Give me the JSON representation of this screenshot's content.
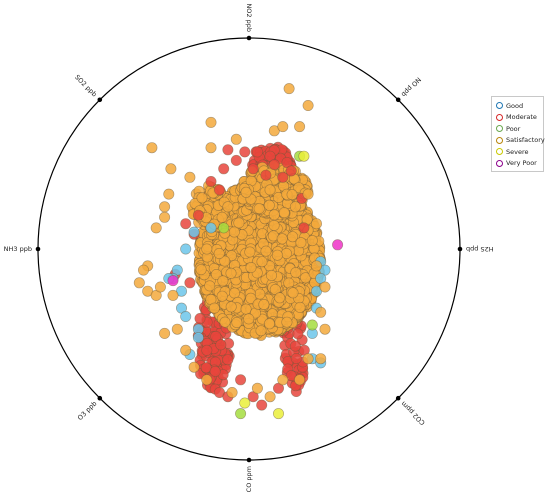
{
  "chart_data": {
    "type": "scatter",
    "layout": "radviz",
    "title": "",
    "anchors": [
      "NO2 ppb",
      "NO ppb",
      "H2S ppb",
      "CO2 ppm",
      "CO ppm",
      "O3 ppb",
      "NH3 ppb",
      "SO2 ppb"
    ],
    "legend": {
      "placement": "right",
      "entries": [
        {
          "name": "Good",
          "color": "#1f77b4"
        },
        {
          "name": "Moderate",
          "color": "#d62728"
        },
        {
          "name": "Poor",
          "color": "#6aa84f"
        },
        {
          "name": "Satisfactory",
          "color": "#b8860b"
        },
        {
          "name": "Severe",
          "color": "#c9c900"
        },
        {
          "name": "Very Poor",
          "color": "#8b008b"
        }
      ]
    },
    "colors": {
      "Good": "#6cc5ea",
      "Moderate": "#e8453c",
      "Poor": "#a5dd3f",
      "Satisfactory": "#f3a93c",
      "Severe": "#eaee3a",
      "Very Poor": "#ee33c8"
    },
    "series": [
      {
        "name": "Moderate",
        "points": [
          [
            -0.1,
            0.47
          ],
          [
            -0.02,
            0.46
          ],
          [
            0.04,
            0.46
          ],
          [
            0.1,
            0.44
          ],
          [
            0.15,
            0.43
          ],
          [
            -0.06,
            0.42
          ],
          [
            0.12,
            0.4
          ],
          [
            0.18,
            0.41
          ],
          [
            -0.12,
            0.38
          ],
          [
            0.02,
            0.38
          ],
          [
            0.2,
            0.37
          ],
          [
            -0.18,
            0.32
          ],
          [
            0.16,
            0.34
          ],
          [
            -0.24,
            0.16
          ],
          [
            -0.3,
            0.12
          ],
          [
            -0.26,
            0.07
          ],
          [
            -0.35,
            -0.12
          ],
          [
            -0.28,
            -0.16
          ],
          [
            -0.14,
            -0.68
          ],
          [
            -0.1,
            -0.7
          ],
          [
            0.02,
            -0.7
          ],
          [
            0.06,
            -0.74
          ],
          [
            0.2,
            -0.6
          ],
          [
            -0.16,
            -0.58
          ],
          [
            -0.04,
            -0.62
          ],
          [
            0.22,
            -0.46
          ],
          [
            0.14,
            -0.66
          ],
          [
            -0.2,
            -0.48
          ],
          [
            0.08,
            0.35
          ],
          [
            -0.14,
            0.28
          ],
          [
            0.25,
            0.24
          ],
          [
            0.26,
            0.1
          ]
        ]
      },
      {
        "name": "Good",
        "points": [
          [
            -0.3,
            0.0
          ],
          [
            -0.34,
            -0.1
          ],
          [
            -0.36,
            -0.14
          ],
          [
            -0.38,
            -0.14
          ],
          [
            -0.32,
            -0.2
          ],
          [
            -0.32,
            -0.28
          ],
          [
            -0.3,
            -0.32
          ],
          [
            -0.24,
            -0.38
          ],
          [
            -0.24,
            -0.42
          ],
          [
            -0.18,
            0.1
          ],
          [
            -0.26,
            0.08
          ],
          [
            0.34,
            -0.06
          ],
          [
            0.36,
            -0.1
          ],
          [
            0.34,
            -0.14
          ],
          [
            0.32,
            -0.2
          ],
          [
            0.32,
            -0.28
          ],
          [
            0.3,
            -0.52
          ],
          [
            0.34,
            -0.54
          ],
          [
            0.3,
            -0.4
          ],
          [
            -0.28,
            -0.5
          ]
        ]
      },
      {
        "name": "Poor",
        "points": [
          [
            0.24,
            0.44
          ],
          [
            -0.04,
            -0.78
          ],
          [
            -0.12,
            0.1
          ],
          [
            0.3,
            -0.36
          ]
        ]
      },
      {
        "name": "Severe",
        "points": [
          [
            0.26,
            0.44
          ],
          [
            0.14,
            -0.78
          ],
          [
            -0.02,
            -0.73
          ]
        ]
      },
      {
        "name": "Very Poor",
        "points": [
          [
            0.42,
            0.02
          ],
          [
            -0.36,
            -0.15
          ]
        ]
      },
      {
        "name": "Satisfactory",
        "points": [
          [
            0.19,
            0.76
          ],
          [
            0.28,
            0.68
          ],
          [
            -0.06,
            0.52
          ],
          [
            -0.46,
            0.48
          ],
          [
            -0.37,
            0.38
          ],
          [
            -0.18,
            0.48
          ],
          [
            0.12,
            0.56
          ],
          [
            0.16,
            0.58
          ],
          [
            0.24,
            0.58
          ],
          [
            -0.18,
            0.6
          ],
          [
            -0.28,
            0.34
          ],
          [
            -0.38,
            0.26
          ],
          [
            -0.4,
            0.2
          ],
          [
            -0.4,
            0.15
          ],
          [
            -0.44,
            0.1
          ],
          [
            -0.48,
            -0.08
          ],
          [
            -0.5,
            -0.1
          ],
          [
            -0.52,
            -0.16
          ],
          [
            -0.48,
            -0.2
          ],
          [
            -0.44,
            -0.22
          ],
          [
            -0.42,
            -0.18
          ],
          [
            -0.36,
            -0.22
          ],
          [
            -0.4,
            -0.4
          ],
          [
            -0.34,
            -0.38
          ],
          [
            -0.3,
            -0.48
          ],
          [
            -0.26,
            -0.56
          ],
          [
            -0.2,
            -0.62
          ],
          [
            -0.08,
            -0.68
          ],
          [
            0.04,
            -0.66
          ],
          [
            0.1,
            -0.7
          ],
          [
            0.16,
            -0.62
          ],
          [
            0.24,
            -0.62
          ],
          [
            0.28,
            -0.52
          ],
          [
            0.34,
            -0.52
          ],
          [
            0.36,
            -0.38
          ],
          [
            0.34,
            -0.3
          ],
          [
            0.36,
            -0.18
          ],
          [
            0.32,
            -0.08
          ],
          [
            0.3,
            0.04
          ],
          [
            0.32,
            0.12
          ],
          [
            0.28,
            0.26
          ],
          [
            0.22,
            0.2
          ],
          [
            0.1,
            0.28
          ],
          [
            -0.2,
            0.0
          ],
          [
            -0.1,
            0.2
          ]
        ]
      }
    ],
    "cloud": [
      {
        "series": "Moderate",
        "cx": 0.1,
        "cy": 0.4,
        "rx": 0.1,
        "ry": 0.09,
        "n": 120
      },
      {
        "series": "Moderate",
        "cx": -0.17,
        "cy": -0.45,
        "rx": 0.08,
        "ry": 0.22,
        "n": 100
      },
      {
        "series": "Moderate",
        "cx": 0.22,
        "cy": -0.4,
        "rx": 0.06,
        "ry": 0.28,
        "n": 60
      },
      {
        "series": "Moderate",
        "cx": -0.14,
        "cy": 0.22,
        "rx": 0.08,
        "ry": 0.08,
        "n": 40
      },
      {
        "series": "Satisfactory",
        "cx": 0.05,
        "cy": -0.05,
        "rx": 0.29,
        "ry": 0.36,
        "n": 3200
      },
      {
        "series": "Satisfactory",
        "cx": 0.12,
        "cy": 0.28,
        "rx": 0.16,
        "ry": 0.12,
        "n": 220
      },
      {
        "series": "Satisfactory",
        "cx": -0.19,
        "cy": 0.2,
        "rx": 0.08,
        "ry": 0.1,
        "n": 80
      }
    ]
  }
}
